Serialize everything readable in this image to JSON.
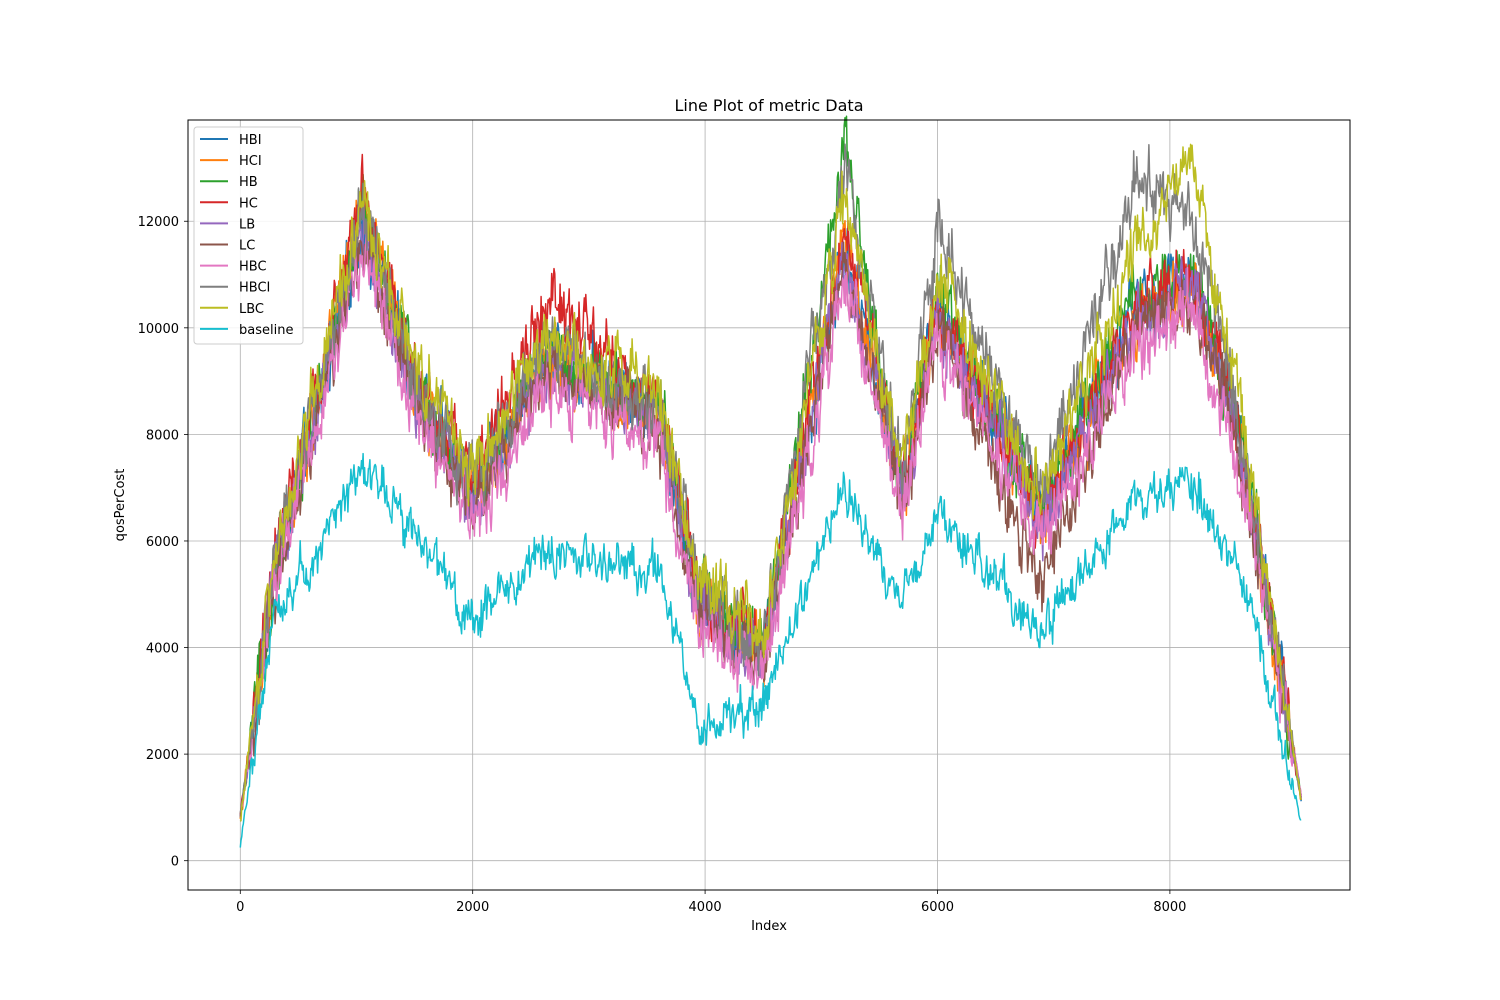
{
  "chart_data": {
    "type": "line",
    "title": "Line Plot of metric Data",
    "xlabel": "Index",
    "ylabel": "qosPerCost",
    "xlim": [
      -450,
      9550
    ],
    "ylim": [
      -550,
      13900
    ],
    "xticks": [
      0,
      2000,
      4000,
      6000,
      8000
    ],
    "yticks": [
      0,
      2000,
      4000,
      6000,
      8000,
      10000,
      12000
    ],
    "grid": true,
    "legend_position": "upper-left",
    "x_range": [
      0,
      9130
    ],
    "series": [
      {
        "name": "HBI",
        "color": "#1f77b4",
        "sample_x": [
          0,
          300,
          600,
          1050,
          1500,
          2000,
          2650,
          3600,
          3950,
          4500,
          5200,
          5700,
          6000,
          6900,
          7700,
          8200,
          8600,
          9130
        ],
        "sample_y": [
          800,
          5500,
          8000,
          12000,
          9000,
          7000,
          9500,
          8500,
          5000,
          4000,
          11500,
          7000,
          10500,
          6500,
          10500,
          11000,
          8000,
          1200
        ]
      },
      {
        "name": "HCI",
        "color": "#ff7f0e",
        "sample_x": [
          0,
          300,
          600,
          1050,
          1500,
          2000,
          2650,
          3600,
          3950,
          4500,
          5200,
          5700,
          6000,
          6900,
          7700,
          8200,
          8600,
          9130
        ],
        "sample_y": [
          800,
          5400,
          8100,
          12400,
          8900,
          6900,
          9400,
          8300,
          4900,
          3900,
          11800,
          6900,
          10300,
          6400,
          10200,
          10800,
          7900,
          1200
        ]
      },
      {
        "name": "HB",
        "color": "#2ca02c",
        "sample_x": [
          0,
          300,
          600,
          1050,
          1500,
          2000,
          2650,
          3600,
          3950,
          4500,
          5200,
          5700,
          6000,
          6900,
          7700,
          8200,
          8600,
          9130
        ],
        "sample_y": [
          800,
          5500,
          8000,
          12300,
          9000,
          7000,
          9600,
          8500,
          5000,
          4000,
          13300,
          7000,
          10600,
          6600,
          10500,
          11000,
          8100,
          1200
        ]
      },
      {
        "name": "HC",
        "color": "#d62728",
        "sample_x": [
          0,
          300,
          600,
          1050,
          1500,
          2000,
          2650,
          3600,
          3950,
          4500,
          5200,
          5700,
          6000,
          6900,
          7700,
          8200,
          8600,
          9130
        ],
        "sample_y": [
          800,
          5600,
          8200,
          12500,
          9100,
          7100,
          10500,
          8600,
          5000,
          4000,
          11900,
          7000,
          10400,
          6500,
          10400,
          10900,
          8000,
          1200
        ]
      },
      {
        "name": "LB",
        "color": "#9467bd",
        "sample_x": [
          0,
          300,
          600,
          1050,
          1500,
          2000,
          2650,
          3600,
          3950,
          4500,
          5200,
          5700,
          6000,
          6900,
          7700,
          8200,
          8600,
          9130
        ],
        "sample_y": [
          800,
          5400,
          7900,
          11900,
          8800,
          6800,
          9300,
          8200,
          4800,
          3800,
          11400,
          6800,
          10200,
          6300,
          10100,
          10700,
          7800,
          1200
        ]
      },
      {
        "name": "LC",
        "color": "#8c564b",
        "sample_x": [
          0,
          300,
          600,
          1050,
          1500,
          2000,
          2650,
          3600,
          3950,
          4500,
          5200,
          5700,
          6000,
          6900,
          7700,
          8200,
          8600,
          9130
        ],
        "sample_y": [
          800,
          5300,
          7800,
          11800,
          8700,
          6700,
          9200,
          8100,
          4700,
          3700,
          11300,
          6700,
          10100,
          5200,
          10000,
          10600,
          7700,
          1200
        ]
      },
      {
        "name": "HBC",
        "color": "#e377c2",
        "sample_x": [
          0,
          300,
          600,
          1050,
          1500,
          2000,
          2650,
          3600,
          3950,
          4500,
          5200,
          5700,
          6000,
          6900,
          7700,
          8200,
          8600,
          9130
        ],
        "sample_y": [
          800,
          5200,
          7600,
          11500,
          8400,
          6400,
          8900,
          7800,
          4500,
          3500,
          10900,
          6400,
          9700,
          6000,
          9600,
          10300,
          7300,
          1200
        ]
      },
      {
        "name": "HBCI",
        "color": "#7f7f7f",
        "sample_x": [
          0,
          300,
          600,
          1050,
          1500,
          2000,
          2650,
          3600,
          3950,
          4500,
          5200,
          5700,
          6000,
          6900,
          7700,
          8200,
          8600,
          9130
        ],
        "sample_y": [
          800,
          5600,
          8200,
          12300,
          9100,
          7100,
          9700,
          8600,
          5100,
          4100,
          13000,
          7100,
          11900,
          6700,
          12800,
          12000,
          8200,
          1200
        ]
      },
      {
        "name": "LBC",
        "color": "#bcbd22",
        "sample_x": [
          0,
          300,
          600,
          1050,
          1500,
          2000,
          2650,
          3600,
          3950,
          4500,
          5200,
          5700,
          6000,
          6900,
          7700,
          8200,
          8600,
          9130
        ],
        "sample_y": [
          800,
          5800,
          8500,
          12400,
          9300,
          7300,
          9900,
          8800,
          5200,
          4300,
          12500,
          7300,
          11000,
          6800,
          11500,
          13100,
          8600,
          1200
        ]
      },
      {
        "name": "baseline",
        "color": "#17becf",
        "sample_x": [
          0,
          300,
          600,
          1050,
          1500,
          2000,
          2650,
          3600,
          3950,
          4500,
          5200,
          5700,
          6000,
          6900,
          7700,
          8200,
          8600,
          9130
        ],
        "sample_y": [
          300,
          4800,
          5600,
          7500,
          6200,
          4500,
          5800,
          5500,
          2500,
          2900,
          7000,
          4800,
          6500,
          4300,
          6800,
          7100,
          5500,
          700
        ]
      }
    ]
  }
}
